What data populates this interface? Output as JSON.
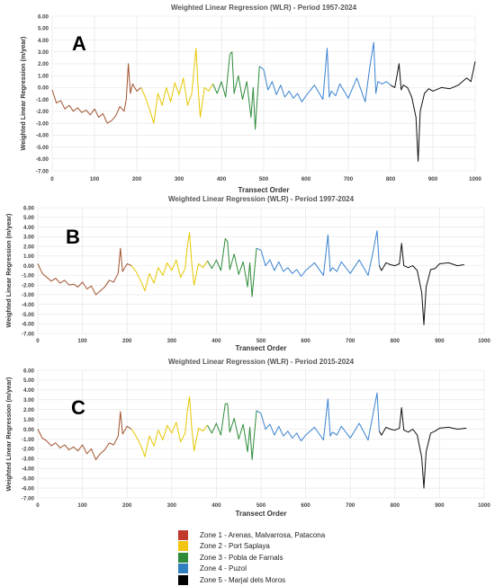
{
  "chart_data": [
    {
      "type": "line",
      "panel_letter": "A",
      "title": "Weighted Linear Regression (WLR) - Period 1957-2024",
      "xlabel": "Transect Order",
      "ylabel": "Weighted Linear Regression (m/year)",
      "xlim": [
        0,
        1000
      ],
      "ylim": [
        -7,
        6
      ],
      "x_ticks": [
        "0",
        "100",
        "200",
        "300",
        "400",
        "500",
        "600",
        "700",
        "800",
        "900",
        "1000"
      ],
      "y_ticks": [
        "-7.00",
        "-6.00",
        "-5.00",
        "-4.00",
        "-3.00",
        "-2.00",
        "-1.00",
        "0.00",
        "1.00",
        "2.00",
        "3.00",
        "4.00",
        "5.00",
        "6.00"
      ],
      "grid": true,
      "series": [
        {
          "name": "Zone 1 - Arenas, Malvarrosa, Patacona",
          "color": "#a0522d",
          "x": [
            0,
            10,
            20,
            30,
            40,
            50,
            60,
            70,
            80,
            90,
            100,
            110,
            120,
            130,
            140,
            150,
            160,
            170,
            175,
            180,
            185,
            190,
            200,
            210
          ],
          "y": [
            -0.2,
            -1.3,
            -1.1,
            -1.8,
            -1.5,
            -2.0,
            -1.7,
            -2.1,
            -1.9,
            -2.3,
            -1.8,
            -2.5,
            -2.2,
            -3.0,
            -2.8,
            -2.4,
            -1.6,
            -2.0,
            -1.0,
            2.0,
            -0.5,
            0.3,
            -0.3,
            0.0
          ]
        },
        {
          "name": "Zone 2 - Port Saplaya",
          "color": "#e6c700",
          "x": [
            210,
            220,
            230,
            240,
            250,
            260,
            270,
            280,
            290,
            300,
            310,
            320,
            330,
            335,
            340,
            345,
            350,
            360,
            370,
            380
          ],
          "y": [
            0.0,
            -0.8,
            -1.8,
            -3.0,
            -0.5,
            -1.5,
            0.0,
            -1.2,
            0.4,
            -0.6,
            0.8,
            -1.5,
            -0.5,
            1.5,
            3.3,
            0.0,
            -2.5,
            0.0,
            -0.3,
            0.3
          ]
        },
        {
          "name": "Zone 3 - Pobla de Farnals",
          "color": "#2e8b3a",
          "x": [
            380,
            390,
            400,
            410,
            420,
            425,
            430,
            440,
            450,
            460,
            470,
            475,
            480,
            490
          ],
          "y": [
            0.3,
            -0.5,
            0.5,
            -0.8,
            2.8,
            3.0,
            -0.5,
            1.0,
            -1.0,
            0.5,
            -2.5,
            0.0,
            -3.5,
            1.8
          ]
        },
        {
          "name": "Zone 4 - Puzol",
          "color": "#3a82d0",
          "x": [
            490,
            500,
            510,
            520,
            530,
            540,
            550,
            560,
            570,
            580,
            590,
            600,
            620,
            640,
            650,
            655,
            660,
            670,
            680,
            700,
            720,
            740,
            750,
            760,
            765,
            770,
            780,
            790,
            800
          ],
          "y": [
            1.8,
            1.5,
            -0.2,
            0.5,
            -0.6,
            0.2,
            -0.8,
            -0.3,
            -0.9,
            -0.5,
            -1.2,
            -0.7,
            0.2,
            -1.0,
            3.3,
            -0.8,
            -0.3,
            -0.7,
            0.3,
            -0.9,
            0.8,
            -1.2,
            1.5,
            3.8,
            -0.5,
            0.5,
            0.3,
            0.5,
            0.2
          ]
        },
        {
          "name": "Zone 5 - Marjal dels Moros",
          "color": "#111111",
          "x": [
            800,
            810,
            820,
            825,
            830,
            840,
            850,
            860,
            865,
            870,
            880,
            890,
            900,
            920,
            940,
            960,
            980,
            990,
            1000
          ],
          "y": [
            0.2,
            0.0,
            2.0,
            -0.2,
            0.2,
            0.0,
            -0.8,
            -2.5,
            -6.2,
            -2.0,
            -0.5,
            -0.1,
            -0.3,
            0.0,
            -0.1,
            0.2,
            0.8,
            0.5,
            2.2
          ]
        }
      ]
    },
    {
      "type": "line",
      "panel_letter": "B",
      "title": "Weighted Linear Regression (WLR) - Period 1997-2024",
      "xlabel": "Transect Order",
      "ylabel": "Weighted Linear Regression (m/year)",
      "xlim": [
        0,
        1000
      ],
      "ylim": [
        -7,
        6
      ],
      "x_ticks": [
        "0",
        "100",
        "200",
        "300",
        "400",
        "500",
        "600",
        "700",
        "800",
        "900",
        "1000"
      ],
      "y_ticks": [
        "-7.00",
        "-6.00",
        "-5.00",
        "-4.00",
        "-3.00",
        "-2.00",
        "-1.00",
        "0.00",
        "1.00",
        "2.00",
        "3.00",
        "4.00",
        "5.00",
        "6.00"
      ],
      "grid": true,
      "series": [
        {
          "name": "Zone 1 - Arenas, Malvarrosa, Patacona",
          "color": "#a0522d",
          "x": [
            0,
            10,
            20,
            30,
            40,
            50,
            60,
            70,
            80,
            90,
            100,
            110,
            120,
            130,
            140,
            150,
            160,
            170,
            180,
            185,
            190,
            200,
            210
          ],
          "y": [
            0.2,
            -0.8,
            -1.2,
            -1.6,
            -1.3,
            -1.8,
            -1.5,
            -2.0,
            -1.9,
            -2.2,
            -1.7,
            -2.4,
            -2.1,
            -3.0,
            -2.6,
            -2.2,
            -1.5,
            -1.7,
            -0.8,
            1.8,
            -0.6,
            0.2,
            0.0
          ]
        },
        {
          "name": "Zone 2 - Port Saplaya",
          "color": "#e6c700",
          "x": [
            210,
            220,
            230,
            240,
            250,
            260,
            270,
            280,
            290,
            300,
            310,
            320,
            330,
            335,
            340,
            345,
            350,
            360,
            370,
            380
          ],
          "y": [
            0.0,
            -0.6,
            -1.5,
            -2.6,
            -0.8,
            -1.8,
            -0.2,
            -1.0,
            0.3,
            -0.5,
            0.6,
            -1.2,
            -0.3,
            2.0,
            3.4,
            0.2,
            -2.0,
            0.2,
            -0.2,
            0.5
          ]
        },
        {
          "name": "Zone 3 - Pobla de Farnals",
          "color": "#2e8b3a",
          "x": [
            380,
            390,
            400,
            410,
            420,
            425,
            430,
            440,
            450,
            460,
            470,
            475,
            480,
            490
          ],
          "y": [
            0.5,
            -0.3,
            0.6,
            -0.5,
            2.8,
            2.5,
            -0.4,
            1.2,
            -0.9,
            0.4,
            -2.2,
            0.3,
            -3.2,
            1.8
          ]
        },
        {
          "name": "Zone 4 - Puzol",
          "color": "#3a82d0",
          "x": [
            490,
            500,
            510,
            520,
            530,
            540,
            550,
            560,
            570,
            580,
            590,
            600,
            620,
            640,
            650,
            655,
            660,
            670,
            680,
            700,
            720,
            740,
            750,
            760,
            765
          ],
          "y": [
            1.8,
            1.6,
            0.0,
            0.6,
            -0.5,
            0.4,
            -0.6,
            -0.2,
            -0.8,
            -0.4,
            -1.1,
            -0.5,
            0.3,
            -1.0,
            3.2,
            -0.6,
            -0.2,
            -0.6,
            0.4,
            -0.8,
            0.6,
            -1.0,
            1.2,
            3.6,
            0.0
          ]
        },
        {
          "name": "Zone 5 - Marjal dels Moros",
          "color": "#111111",
          "x": [
            765,
            770,
            780,
            790,
            800,
            810,
            815,
            820,
            830,
            840,
            850,
            860,
            865,
            870,
            880,
            890,
            900,
            920,
            940,
            955
          ],
          "y": [
            0.0,
            -0.5,
            0.3,
            0.1,
            0.0,
            0.2,
            2.3,
            0.0,
            -0.2,
            0.0,
            -0.5,
            -2.8,
            -6.1,
            -2.2,
            -0.4,
            -0.3,
            0.2,
            0.3,
            0.0,
            0.1
          ]
        }
      ]
    },
    {
      "type": "line",
      "panel_letter": "C",
      "title": "Weighted Linear Regression (WLR) - Period 2015-2024",
      "xlabel": "Transect Order",
      "ylabel": "Weighted Linear Regression (m/year)",
      "xlim": [
        0,
        1000
      ],
      "ylim": [
        -7,
        6
      ],
      "x_ticks": [
        "0",
        "100",
        "200",
        "300",
        "400",
        "500",
        "600",
        "700",
        "800",
        "900",
        "1000"
      ],
      "y_ticks": [
        "-7.00",
        "-6.00",
        "-5.00",
        "-4.00",
        "-3.00",
        "-2.00",
        "-1.00",
        "0.00",
        "1.00",
        "2.00",
        "3.00",
        "4.00",
        "5.00",
        "6.00"
      ],
      "grid": true,
      "series": [
        {
          "name": "Zone 1 - Arenas, Malvarrosa, Patacona",
          "color": "#a0522d",
          "x": [
            0,
            10,
            20,
            30,
            40,
            50,
            60,
            70,
            80,
            90,
            100,
            110,
            120,
            130,
            140,
            150,
            160,
            170,
            180,
            185,
            190,
            200,
            210
          ],
          "y": [
            0.0,
            -0.9,
            -1.2,
            -1.7,
            -1.4,
            -1.9,
            -1.6,
            -2.1,
            -1.8,
            -2.2,
            -1.6,
            -2.5,
            -2.0,
            -3.1,
            -2.5,
            -2.1,
            -1.4,
            -1.6,
            -0.7,
            1.8,
            -0.5,
            0.3,
            0.0
          ]
        },
        {
          "name": "Zone 2 - Port Saplaya",
          "color": "#e6c700",
          "x": [
            210,
            220,
            230,
            240,
            250,
            260,
            270,
            280,
            290,
            300,
            310,
            320,
            330,
            335,
            340,
            345,
            350,
            360,
            370,
            380
          ],
          "y": [
            0.0,
            -0.7,
            -1.6,
            -2.8,
            -0.7,
            -1.7,
            -0.1,
            -1.1,
            0.4,
            -0.4,
            0.7,
            -1.3,
            -0.4,
            1.9,
            3.3,
            0.1,
            -2.2,
            0.1,
            -0.2,
            0.4
          ]
        },
        {
          "name": "Zone 3 - Pobla de Farnals",
          "color": "#2e8b3a",
          "x": [
            380,
            390,
            400,
            410,
            420,
            425,
            430,
            440,
            450,
            460,
            470,
            475,
            480,
            490
          ],
          "y": [
            0.4,
            -0.4,
            0.6,
            -0.6,
            2.6,
            2.6,
            -0.3,
            1.1,
            -1.0,
            0.5,
            -2.3,
            0.2,
            -3.1,
            1.9
          ]
        },
        {
          "name": "Zone 4 - Puzol",
          "color": "#3a82d0",
          "x": [
            490,
            500,
            510,
            520,
            530,
            540,
            550,
            560,
            570,
            580,
            590,
            600,
            620,
            640,
            650,
            655,
            660,
            670,
            680,
            700,
            720,
            740,
            750,
            760,
            765
          ],
          "y": [
            1.9,
            1.6,
            0.0,
            0.5,
            -0.6,
            0.3,
            -0.7,
            -0.2,
            -0.9,
            -0.4,
            -1.2,
            -0.6,
            0.2,
            -1.1,
            3.1,
            -0.7,
            -0.3,
            -0.6,
            0.3,
            -0.9,
            0.6,
            -1.1,
            1.3,
            3.7,
            -0.2
          ]
        },
        {
          "name": "Zone 5 - Marjal dels Moros",
          "color": "#111111",
          "x": [
            765,
            770,
            780,
            790,
            800,
            810,
            815,
            820,
            830,
            840,
            850,
            860,
            865,
            870,
            880,
            890,
            900,
            920,
            940,
            960
          ],
          "y": [
            -0.2,
            -0.6,
            0.2,
            0.0,
            -0.1,
            0.1,
            2.2,
            -0.1,
            -0.3,
            0.0,
            -0.6,
            -2.9,
            -6.0,
            -2.3,
            -0.4,
            -0.2,
            0.1,
            0.2,
            0.0,
            0.1
          ]
        }
      ]
    }
  ],
  "legend": {
    "items": [
      {
        "label": "Zone 1 - Arenas, Malvarrosa, Patacona",
        "color": "#c0392b"
      },
      {
        "label": "Zone 2 - Port Saplaya",
        "color": "#f1c40f"
      },
      {
        "label": "Zone 3 - Pobla de Farnals",
        "color": "#2e8b3a"
      },
      {
        "label": "Zone 4 - Puzol",
        "color": "#2f7fc1"
      },
      {
        "label": "Zone 5 - Marjal dels Moros",
        "color": "#000000"
      }
    ]
  }
}
